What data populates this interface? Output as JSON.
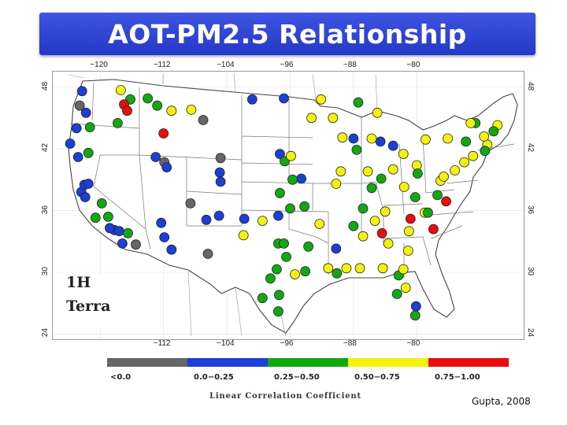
{
  "title": "AOT-PM2.5 Relationship",
  "axes": {
    "top_lon": [
      "−120",
      "−112",
      "−104",
      "−96",
      "−88",
      "−80"
    ],
    "bottom_lon": [
      "−112",
      "−104",
      "−96",
      "−88",
      "−80"
    ],
    "left_lat": [
      "48",
      "42",
      "36",
      "30",
      "24"
    ],
    "right_lat": [
      "48",
      "42",
      "36",
      "30",
      "24"
    ]
  },
  "panel_label": {
    "line1": "1H",
    "line2": "Terra"
  },
  "legend": {
    "title": "Linear Correlation Coefficient",
    "bins": [
      {
        "label": "<0.0",
        "color": "#666666"
      },
      {
        "label": "0.0−0.25",
        "color": "#1c3fd6"
      },
      {
        "label": "0.25−0.50",
        "color": "#12a812"
      },
      {
        "label": "0.50−0.75",
        "color": "#f2f20e"
      },
      {
        "label": "0.75−1.00",
        "color": "#e80e0e"
      }
    ]
  },
  "credit": "Gupta, 2008",
  "stations": [
    {
      "lon": -122.3,
      "lat": 47.6,
      "c": 1
    },
    {
      "lon": -122.6,
      "lat": 46.2,
      "c": 0
    },
    {
      "lon": -121.8,
      "lat": 45.5,
      "c": 1
    },
    {
      "lon": -123.0,
      "lat": 44.0,
      "c": 1
    },
    {
      "lon": -121.3,
      "lat": 44.1,
      "c": 2
    },
    {
      "lon": -123.8,
      "lat": 42.5,
      "c": 1
    },
    {
      "lon": -122.8,
      "lat": 41.2,
      "c": 1
    },
    {
      "lon": -121.5,
      "lat": 41.6,
      "c": 2
    },
    {
      "lon": -117.4,
      "lat": 47.7,
      "c": 3
    },
    {
      "lon": -116.2,
      "lat": 46.8,
      "c": 2
    },
    {
      "lon": -117.0,
      "lat": 46.3,
      "c": 4
    },
    {
      "lon": -116.6,
      "lat": 45.7,
      "c": 4
    },
    {
      "lon": -117.8,
      "lat": 44.5,
      "c": 2
    },
    {
      "lon": -114.0,
      "lat": 46.9,
      "c": 2
    },
    {
      "lon": -112.8,
      "lat": 46.2,
      "c": 2
    },
    {
      "lon": -111.0,
      "lat": 45.7,
      "c": 3
    },
    {
      "lon": -108.5,
      "lat": 45.8,
      "c": 3
    },
    {
      "lon": -113.0,
      "lat": 41.2,
      "c": 1
    },
    {
      "lon": -111.9,
      "lat": 40.7,
      "c": 0
    },
    {
      "lon": -111.6,
      "lat": 40.2,
      "c": 1
    },
    {
      "lon": -112.0,
      "lat": 43.5,
      "c": 4
    },
    {
      "lon": -107.0,
      "lat": 44.8,
      "c": 0
    },
    {
      "lon": -104.8,
      "lat": 41.1,
      "c": 0
    },
    {
      "lon": -104.9,
      "lat": 39.7,
      "c": 1
    },
    {
      "lon": -104.8,
      "lat": 38.8,
      "c": 1
    },
    {
      "lon": -106.6,
      "lat": 35.1,
      "c": 1
    },
    {
      "lon": -105.0,
      "lat": 35.5,
      "c": 1
    },
    {
      "lon": -108.6,
      "lat": 36.7,
      "c": 0
    },
    {
      "lon": -106.4,
      "lat": 31.8,
      "c": 0
    },
    {
      "lon": -111.9,
      "lat": 33.4,
      "c": 1
    },
    {
      "lon": -111.0,
      "lat": 32.2,
      "c": 1
    },
    {
      "lon": -112.3,
      "lat": 34.8,
      "c": 1
    },
    {
      "lon": -122.4,
      "lat": 37.8,
      "c": 1
    },
    {
      "lon": -121.9,
      "lat": 37.3,
      "c": 1
    },
    {
      "lon": -122.0,
      "lat": 38.5,
      "c": 1
    },
    {
      "lon": -121.5,
      "lat": 38.6,
      "c": 1
    },
    {
      "lon": -119.8,
      "lat": 36.7,
      "c": 2
    },
    {
      "lon": -119.0,
      "lat": 35.4,
      "c": 2
    },
    {
      "lon": -118.2,
      "lat": 34.1,
      "c": 1
    },
    {
      "lon": -117.6,
      "lat": 34.0,
      "c": 1
    },
    {
      "lon": -117.2,
      "lat": 32.8,
      "c": 1
    },
    {
      "lon": -116.5,
      "lat": 33.8,
      "c": 2
    },
    {
      "lon": -115.5,
      "lat": 32.7,
      "c": 0
    },
    {
      "lon": -120.6,
      "lat": 35.3,
      "c": 2
    },
    {
      "lon": -118.8,
      "lat": 34.3,
      "c": 1
    },
    {
      "lon": -97.3,
      "lat": 41.5,
      "c": 1
    },
    {
      "lon": -100.8,
      "lat": 46.8,
      "c": 1
    },
    {
      "lon": -96.8,
      "lat": 46.9,
      "c": 1
    },
    {
      "lon": -93.3,
      "lat": 45.0,
      "c": 3
    },
    {
      "lon": -92.1,
      "lat": 46.8,
      "c": 3
    },
    {
      "lon": -96.7,
      "lat": 40.8,
      "c": 2
    },
    {
      "lon": -95.9,
      "lat": 41.3,
      "c": 3
    },
    {
      "lon": -94.6,
      "lat": 39.1,
      "c": 1
    },
    {
      "lon": -97.3,
      "lat": 37.7,
      "c": 2
    },
    {
      "lon": -95.7,
      "lat": 39.0,
      "c": 2
    },
    {
      "lon": -97.5,
      "lat": 35.5,
      "c": 1
    },
    {
      "lon": -96.0,
      "lat": 36.2,
      "c": 2
    },
    {
      "lon": -99.5,
      "lat": 35.0,
      "c": 3
    },
    {
      "lon": -101.8,
      "lat": 35.2,
      "c": 1
    },
    {
      "lon": -101.9,
      "lat": 33.6,
      "c": 3
    },
    {
      "lon": -97.5,
      "lat": 32.8,
      "c": 2
    },
    {
      "lon": -96.8,
      "lat": 32.8,
      "c": 2
    },
    {
      "lon": -96.5,
      "lat": 31.5,
      "c": 2
    },
    {
      "lon": -95.4,
      "lat": 29.8,
      "c": 3
    },
    {
      "lon": -94.1,
      "lat": 30.1,
      "c": 2
    },
    {
      "lon": -97.7,
      "lat": 30.3,
      "c": 2
    },
    {
      "lon": -98.5,
      "lat": 29.4,
      "c": 2
    },
    {
      "lon": -97.4,
      "lat": 27.8,
      "c": 2
    },
    {
      "lon": -99.5,
      "lat": 27.5,
      "c": 2
    },
    {
      "lon": -97.5,
      "lat": 26.2,
      "c": 2
    },
    {
      "lon": -93.7,
      "lat": 32.5,
      "c": 2
    },
    {
      "lon": -92.3,
      "lat": 34.7,
      "c": 3
    },
    {
      "lon": -94.2,
      "lat": 36.4,
      "c": 2
    },
    {
      "lon": -91.2,
      "lat": 30.4,
      "c": 3
    },
    {
      "lon": -90.1,
      "lat": 29.9,
      "c": 2
    },
    {
      "lon": -90.2,
      "lat": 32.3,
      "c": 1
    },
    {
      "lon": -88.9,
      "lat": 30.4,
      "c": 3
    },
    {
      "lon": -90.2,
      "lat": 38.6,
      "c": 3
    },
    {
      "lon": -89.6,
      "lat": 39.8,
      "c": 3
    },
    {
      "lon": -87.6,
      "lat": 41.9,
      "c": 2
    },
    {
      "lon": -88.0,
      "lat": 43.0,
      "c": 1
    },
    {
      "lon": -89.4,
      "lat": 43.1,
      "c": 3
    },
    {
      "lon": -86.2,
      "lat": 39.8,
      "c": 3
    },
    {
      "lon": -85.7,
      "lat": 38.2,
      "c": 2
    },
    {
      "lon": -84.5,
      "lat": 39.1,
      "c": 2
    },
    {
      "lon": -83.0,
      "lat": 40.0,
      "c": 3
    },
    {
      "lon": -81.7,
      "lat": 41.5,
      "c": 3
    },
    {
      "lon": -83.0,
      "lat": 42.3,
      "c": 1
    },
    {
      "lon": -84.6,
      "lat": 42.7,
      "c": 1
    },
    {
      "lon": -85.7,
      "lat": 43.0,
      "c": 3
    },
    {
      "lon": -86.8,
      "lat": 36.2,
      "c": 2
    },
    {
      "lon": -84.0,
      "lat": 35.9,
      "c": 3
    },
    {
      "lon": -85.3,
      "lat": 35.0,
      "c": 3
    },
    {
      "lon": -86.8,
      "lat": 33.5,
      "c": 3
    },
    {
      "lon": -88.0,
      "lat": 34.5,
      "c": 2
    },
    {
      "lon": -84.4,
      "lat": 33.8,
      "c": 4
    },
    {
      "lon": -83.6,
      "lat": 32.8,
      "c": 3
    },
    {
      "lon": -81.1,
      "lat": 32.1,
      "c": 3
    },
    {
      "lon": -81.0,
      "lat": 34.0,
      "c": 3
    },
    {
      "lon": -80.8,
      "lat": 35.2,
      "c": 4
    },
    {
      "lon": -79.0,
      "lat": 35.8,
      "c": 3
    },
    {
      "lon": -78.6,
      "lat": 35.8,
      "c": 2
    },
    {
      "lon": -77.4,
      "lat": 37.5,
      "c": 2
    },
    {
      "lon": -77.0,
      "lat": 38.9,
      "c": 3
    },
    {
      "lon": -76.6,
      "lat": 39.3,
      "c": 3
    },
    {
      "lon": -75.2,
      "lat": 39.9,
      "c": 3
    },
    {
      "lon": -74.0,
      "lat": 40.7,
      "c": 3
    },
    {
      "lon": -72.9,
      "lat": 41.3,
      "c": 3
    },
    {
      "lon": -71.1,
      "lat": 42.4,
      "c": 3
    },
    {
      "lon": -71.4,
      "lat": 41.8,
      "c": 2
    },
    {
      "lon": -73.8,
      "lat": 42.7,
      "c": 2
    },
    {
      "lon": -76.1,
      "lat": 43.0,
      "c": 3
    },
    {
      "lon": -78.9,
      "lat": 42.9,
      "c": 3
    },
    {
      "lon": -80.0,
      "lat": 40.4,
      "c": 3
    },
    {
      "lon": -79.9,
      "lat": 39.6,
      "c": 2
    },
    {
      "lon": -81.6,
      "lat": 38.3,
      "c": 3
    },
    {
      "lon": -80.2,
      "lat": 37.3,
      "c": 2
    },
    {
      "lon": -76.3,
      "lat": 36.9,
      "c": 4
    },
    {
      "lon": -77.9,
      "lat": 34.2,
      "c": 4
    },
    {
      "lon": -82.5,
      "lat": 27.9,
      "c": 2
    },
    {
      "lon": -81.4,
      "lat": 28.5,
      "c": 3
    },
    {
      "lon": -80.2,
      "lat": 25.8,
      "c": 2
    },
    {
      "lon": -80.1,
      "lat": 26.7,
      "c": 1
    },
    {
      "lon": -82.3,
      "lat": 29.7,
      "c": 2
    },
    {
      "lon": -81.7,
      "lat": 30.3,
      "c": 3
    },
    {
      "lon": -84.3,
      "lat": 30.4,
      "c": 3
    },
    {
      "lon": -87.2,
      "lat": 30.4,
      "c": 3
    },
    {
      "lon": -69.8,
      "lat": 44.3,
      "c": 3
    },
    {
      "lon": -70.3,
      "lat": 43.7,
      "c": 2
    },
    {
      "lon": -72.6,
      "lat": 44.5,
      "c": 2
    },
    {
      "lon": -71.5,
      "lat": 43.2,
      "c": 3
    },
    {
      "lon": -73.2,
      "lat": 44.5,
      "c": 3
    },
    {
      "lon": -85.0,
      "lat": 45.5,
      "c": 3
    },
    {
      "lon": -87.4,
      "lat": 46.5,
      "c": 2
    },
    {
      "lon": -90.6,
      "lat": 45.0,
      "c": 3
    }
  ]
}
